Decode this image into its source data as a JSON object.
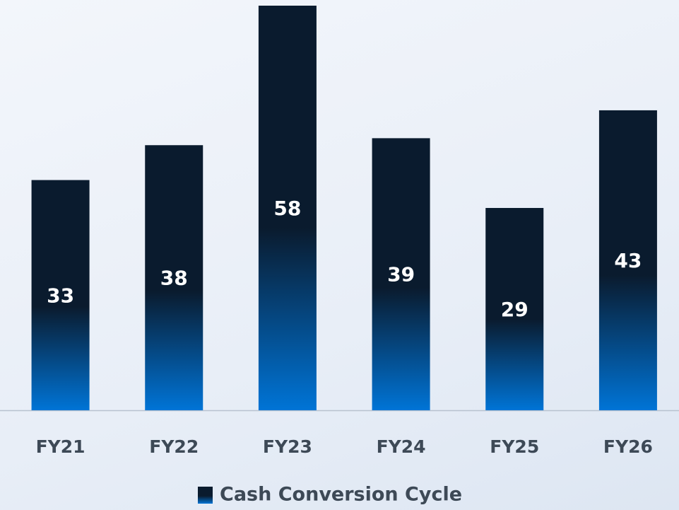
{
  "chart_data": {
    "type": "bar",
    "categories": [
      "FY21",
      "FY22",
      "FY23",
      "FY24",
      "FY25",
      "FY26"
    ],
    "series": [
      {
        "name": "Cash Conversion Cycle",
        "color": [
          "#0a1b2e",
          "#0074d6"
        ],
        "values": [
          33,
          38,
          58,
          39,
          29,
          43
        ]
      }
    ],
    "legend": "bottom"
  }
}
